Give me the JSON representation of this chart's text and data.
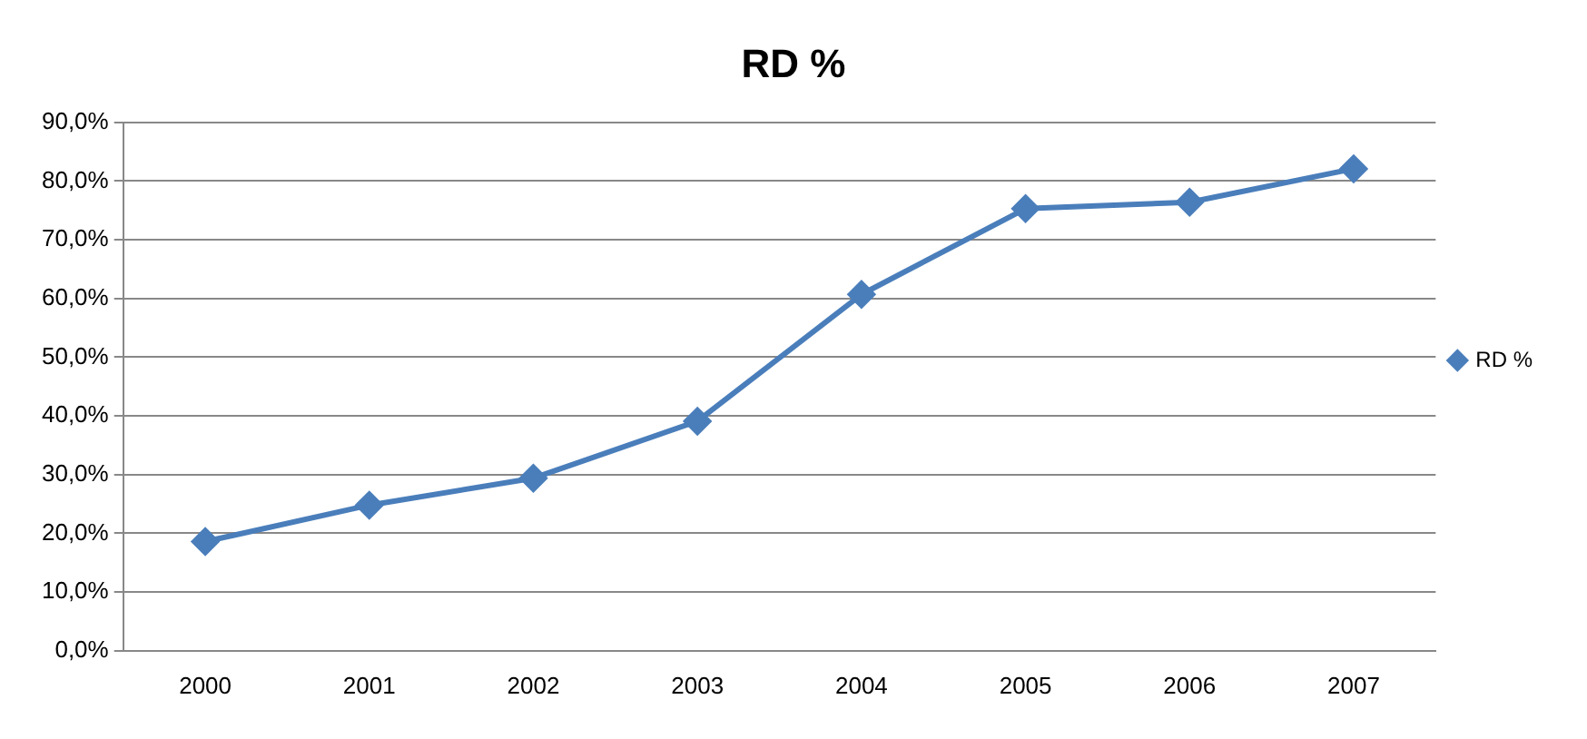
{
  "chart_data": {
    "type": "line",
    "title": "RD %",
    "categories": [
      "2000",
      "2001",
      "2002",
      "2003",
      "2004",
      "2005",
      "2006",
      "2007"
    ],
    "series": [
      {
        "name": "RD %",
        "color": "#4a7ebb",
        "values": [
          18.6,
          24.8,
          29.4,
          39.1,
          60.7,
          75.3,
          76.4,
          82.1
        ]
      }
    ],
    "ylim": [
      0,
      90
    ],
    "yticks": [
      {
        "value": 0,
        "label": "0,0%"
      },
      {
        "value": 10,
        "label": "10,0%"
      },
      {
        "value": 20,
        "label": "20,0%"
      },
      {
        "value": 30,
        "label": "30,0%"
      },
      {
        "value": 40,
        "label": "40,0%"
      },
      {
        "value": 50,
        "label": "50,0%"
      },
      {
        "value": 60,
        "label": "60,0%"
      },
      {
        "value": 70,
        "label": "70,0%"
      },
      {
        "value": 80,
        "label": "80,0%"
      },
      {
        "value": 90,
        "label": "90,0%"
      }
    ],
    "grid": "y",
    "legend": "right",
    "marker": "diamond",
    "line_style": "solid"
  }
}
